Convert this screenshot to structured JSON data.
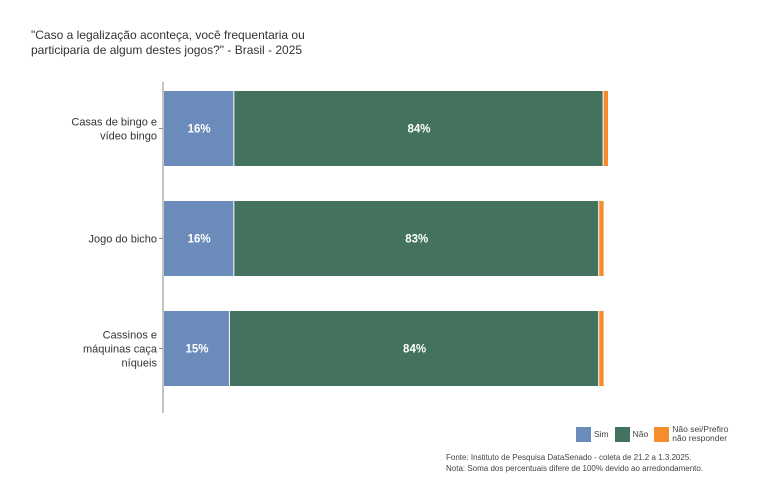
{
  "chart_data": {
    "type": "bar",
    "orientation": "horizontal",
    "stacked": true,
    "title": "\"Caso a legalização aconteça, você frequentaria ou participaria de algum destes jogos?\" - Brasil - 2025",
    "categories": [
      "Casas de bingo e vídeo bingo",
      "Jogo do bicho",
      "Cassinos e máquinas caça níqueis"
    ],
    "category_lines": [
      [
        "Casas de bingo e",
        "vídeo bingo"
      ],
      [
        "Jogo do bicho"
      ],
      [
        "Cassinos e",
        "máquinas caça",
        "níqueis"
      ]
    ],
    "series": [
      {
        "name": "Sim",
        "values": [
          16,
          16,
          15
        ],
        "labels": [
          "16%",
          "16%",
          "15%"
        ],
        "color": "#6b8cba"
      },
      {
        "name": "Não",
        "values": [
          84,
          83,
          84
        ],
        "labels": [
          "84%",
          "83%",
          "84%"
        ],
        "color": "#43735e"
      },
      {
        "name": "Não sei/Prefiro não responder",
        "values": [
          1,
          1,
          1
        ],
        "labels": [
          "",
          "",
          ""
        ],
        "color": "#f58d2e"
      }
    ],
    "xlim": [
      0,
      101
    ],
    "grid": false,
    "legend_position": "bottom-right"
  },
  "legend": {
    "items": [
      {
        "label": "Sim",
        "color": "#6b8cba"
      },
      {
        "label": "Não",
        "color": "#43735e"
      },
      {
        "label_line1": "Não sei/Prefiro",
        "label_line2": "não responder",
        "color": "#f58d2e"
      }
    ]
  },
  "source": {
    "line1": "Fonte: Instituto de Pesquisa DataSenado - coleta de 21.2 a 1.3.2025.",
    "line2": "Nota: Soma dos percentuais difere de 100% devido ao arredondamento."
  }
}
